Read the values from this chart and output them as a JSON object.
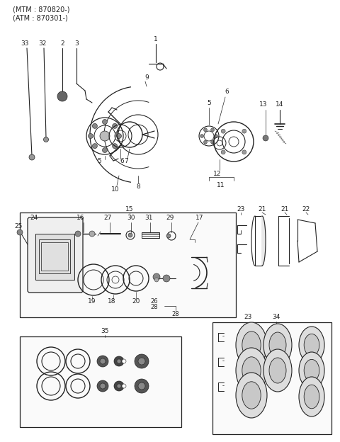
{
  "title_lines": [
    "(MTM : 870820-)",
    "(ATM : 870301-)"
  ],
  "bg_color": "#ffffff",
  "line_color": "#222222",
  "text_color": "#222222",
  "fig_width": 4.8,
  "fig_height": 6.24,
  "dpi": 100
}
